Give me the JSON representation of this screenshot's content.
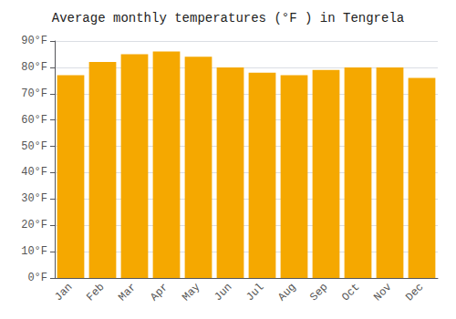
{
  "chart_data": {
    "type": "bar",
    "title": "Average monthly temperatures (°F ) in Tengrela",
    "categories": [
      "Jan",
      "Feb",
      "Mar",
      "Apr",
      "May",
      "Jun",
      "Jul",
      "Aug",
      "Sep",
      "Oct",
      "Nov",
      "Dec"
    ],
    "values": [
      77,
      82,
      85,
      86,
      84,
      80,
      78,
      77,
      79,
      80,
      80,
      76
    ],
    "color": "#F5A800",
    "ylim": [
      0,
      90
    ],
    "yticks": [
      {
        "value": 0,
        "label": "0°F"
      },
      {
        "value": 10,
        "label": "10°F"
      },
      {
        "value": 20,
        "label": "20°F"
      },
      {
        "value": 30,
        "label": "30°F"
      },
      {
        "value": 40,
        "label": "40°F"
      },
      {
        "value": 50,
        "label": "50°F"
      },
      {
        "value": 60,
        "label": "60°F"
      },
      {
        "value": 70,
        "label": "70°F"
      },
      {
        "value": 80,
        "label": "80°F"
      },
      {
        "value": 90,
        "label": "90°F"
      }
    ],
    "grid": true
  }
}
